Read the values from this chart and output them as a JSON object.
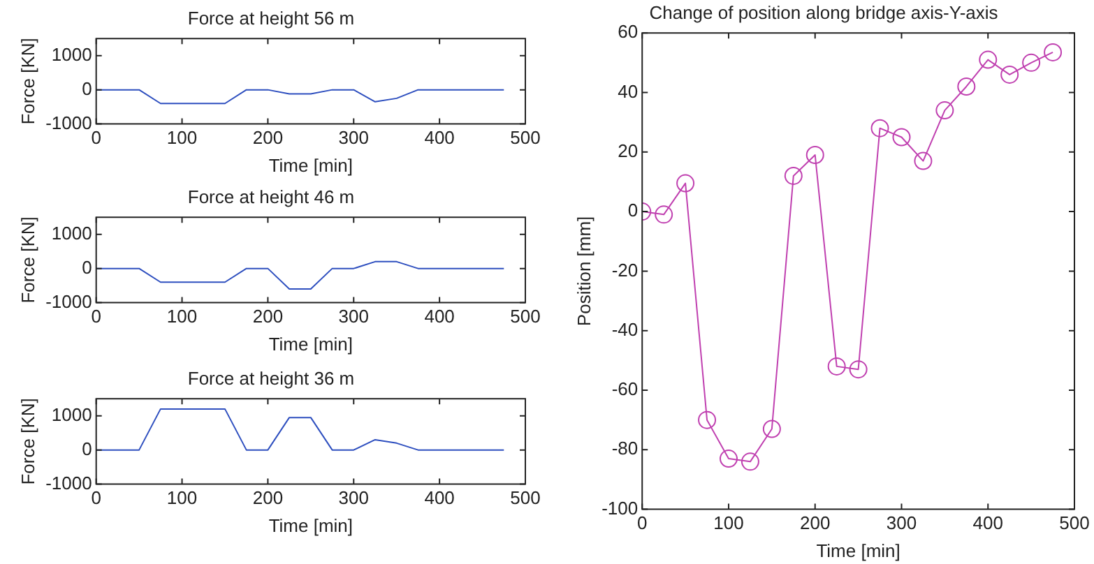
{
  "chart_data": [
    {
      "type": "line",
      "title": "Force at height 56 m",
      "xlabel": "Time [min]",
      "ylabel": "Force [KN]",
      "x": [
        0,
        50,
        75,
        150,
        175,
        200,
        225,
        250,
        275,
        300,
        325,
        350,
        375,
        475
      ],
      "marker": "none",
      "series": [
        {
          "color": "#2e4fbf",
          "values": [
            0,
            0,
            -400,
            -400,
            0,
            0,
            -120,
            -120,
            0,
            0,
            -350,
            -250,
            0,
            0
          ]
        }
      ],
      "xlim": [
        0,
        500
      ],
      "xticks": [
        0,
        100,
        200,
        300,
        400,
        500
      ],
      "ylim": [
        -1000,
        1500
      ],
      "yticks": [
        -1000,
        0,
        1000
      ]
    },
    {
      "type": "line",
      "title": "Force at height 46 m",
      "xlabel": "Time [min]",
      "ylabel": "Force [KN]",
      "x": [
        0,
        50,
        75,
        150,
        175,
        200,
        225,
        250,
        275,
        300,
        325,
        350,
        375,
        475
      ],
      "marker": "none",
      "series": [
        {
          "color": "#2e4fbf",
          "values": [
            0,
            0,
            -400,
            -400,
            0,
            0,
            -600,
            -600,
            0,
            0,
            200,
            200,
            0,
            0
          ]
        }
      ],
      "xlim": [
        0,
        500
      ],
      "xticks": [
        0,
        100,
        200,
        300,
        400,
        500
      ],
      "ylim": [
        -1000,
        1500
      ],
      "yticks": [
        -1000,
        0,
        1000
      ]
    },
    {
      "type": "line",
      "title": "Force at height 36 m",
      "xlabel": "Time [min]",
      "ylabel": "Force [KN]",
      "x": [
        0,
        50,
        75,
        150,
        175,
        200,
        225,
        250,
        275,
        300,
        325,
        350,
        375,
        475
      ],
      "marker": "none",
      "series": [
        {
          "color": "#2e4fbf",
          "values": [
            0,
            0,
            1200,
            1200,
            0,
            0,
            950,
            950,
            0,
            0,
            300,
            200,
            0,
            0
          ]
        }
      ],
      "xlim": [
        0,
        500
      ],
      "xticks": [
        0,
        100,
        200,
        300,
        400,
        500
      ],
      "ylim": [
        -1000,
        1500
      ],
      "yticks": [
        -1000,
        0,
        1000
      ]
    },
    {
      "type": "line",
      "title": "Change of position along bridge axis-Y-axis",
      "xlabel": "Time [min]",
      "ylabel": "Position [mm]",
      "x": [
        0,
        25,
        50,
        75,
        100,
        125,
        150,
        175,
        200,
        225,
        250,
        275,
        300,
        325,
        350,
        375,
        400,
        425,
        450,
        475
      ],
      "marker": "circle",
      "series": [
        {
          "color": "#c040b0",
          "values": [
            0,
            -1,
            9.5,
            -70,
            -83,
            -84,
            -73,
            12,
            19,
            -52,
            -53,
            28,
            25,
            17,
            34,
            42,
            51,
            46,
            50,
            53.5
          ]
        }
      ],
      "xlim": [
        0,
        500
      ],
      "xticks": [
        0,
        100,
        200,
        300,
        400,
        500
      ],
      "ylim": [
        -100,
        60
      ],
      "yticks": [
        -100,
        -80,
        -60,
        -40,
        -20,
        0,
        20,
        40,
        60
      ]
    }
  ]
}
